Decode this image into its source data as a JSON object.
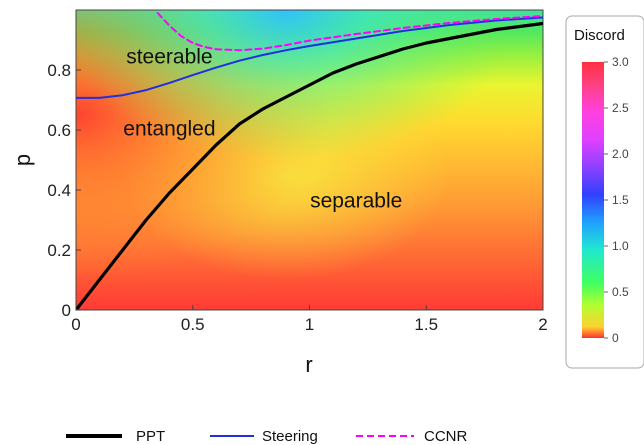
{
  "chart_data": {
    "type": "heatmap",
    "xlabel": "r",
    "ylabel": "p",
    "xlim": [
      0,
      2
    ],
    "ylim": [
      0,
      1
    ],
    "x_ticks": [
      "0",
      "0.5",
      "1",
      "1.5",
      "2"
    ],
    "x_tick_values": [
      0,
      0.5,
      1,
      1.5,
      2
    ],
    "y_ticks": [
      "0",
      "0.2",
      "0.4",
      "0.6",
      "0.8"
    ],
    "y_tick_values": [
      0,
      0.2,
      0.4,
      0.6,
      0.8
    ],
    "colorbar": {
      "title": "Discord",
      "range": [
        0,
        3
      ],
      "ticks": [
        "0",
        "0.5",
        "1.0",
        "1.5",
        "2.0",
        "2.5",
        "3.0"
      ],
      "tick_values": [
        0,
        0.5,
        1.0,
        1.5,
        2.0,
        2.5,
        3.0
      ],
      "colors": [
        "#ff3030",
        "#ffa030",
        "#ffff30",
        "#60ff30",
        "#20e0ff",
        "#3040ff",
        "#d040ff",
        "#ff40ff",
        "#ff4040"
      ]
    },
    "regions": [
      {
        "label": "steerable",
        "r": 0.4,
        "p": 0.84
      },
      {
        "label": "entangled",
        "r": 0.4,
        "p": 0.6
      },
      {
        "label": "separable",
        "r": 1.2,
        "p": 0.36
      }
    ],
    "series": [
      {
        "name": "PPT",
        "style": "solid",
        "color": "#000000",
        "x": [
          0,
          0.1,
          0.2,
          0.3,
          0.4,
          0.5,
          0.6,
          0.7,
          0.8,
          0.9,
          1.0,
          1.1,
          1.2,
          1.3,
          1.4,
          1.5,
          1.6,
          1.7,
          1.8,
          1.9,
          2.0
        ],
        "y": [
          0,
          0.1,
          0.2,
          0.3,
          0.39,
          0.47,
          0.55,
          0.62,
          0.67,
          0.71,
          0.75,
          0.79,
          0.82,
          0.845,
          0.87,
          0.89,
          0.905,
          0.92,
          0.935,
          0.945,
          0.955
        ]
      },
      {
        "name": "Steering",
        "style": "solid",
        "color": "#2030e0",
        "x": [
          0,
          0.1,
          0.2,
          0.3,
          0.4,
          0.5,
          0.6,
          0.7,
          0.8,
          0.9,
          1.0,
          1.2,
          1.4,
          1.6,
          1.8,
          2.0
        ],
        "y": [
          0.707,
          0.707,
          0.716,
          0.733,
          0.757,
          0.783,
          0.808,
          0.831,
          0.85,
          0.866,
          0.88,
          0.905,
          0.93,
          0.95,
          0.965,
          0.975
        ]
      },
      {
        "name": "CCNR",
        "style": "dashed",
        "color": "#ff00ff",
        "x": [
          0.35,
          0.4,
          0.45,
          0.5,
          0.55,
          0.6,
          0.7,
          0.8,
          0.9,
          1.0,
          1.2,
          1.4,
          1.6,
          1.8,
          2.0
        ],
        "y": [
          0.99,
          0.948,
          0.913,
          0.89,
          0.877,
          0.869,
          0.866,
          0.871,
          0.883,
          0.898,
          0.92,
          0.94,
          0.957,
          0.97,
          0.98
        ]
      }
    ],
    "legend": {
      "position": "bottom"
    }
  }
}
